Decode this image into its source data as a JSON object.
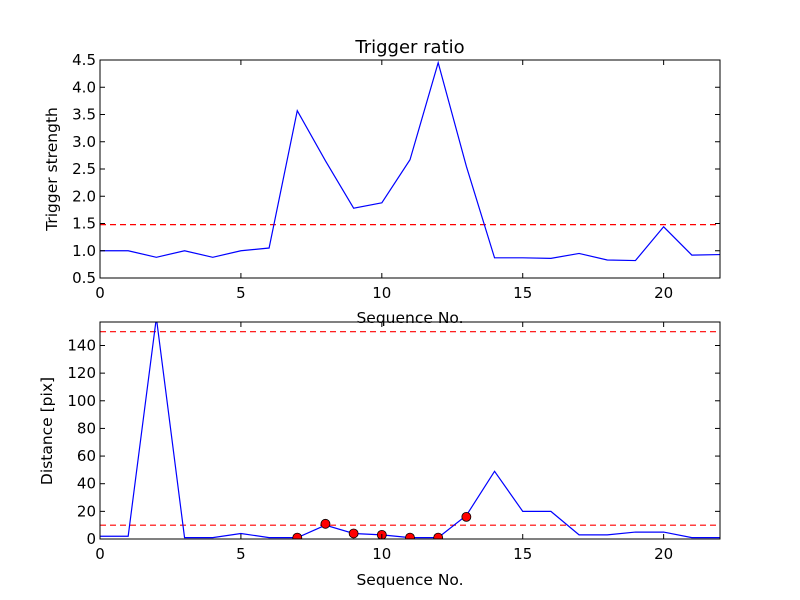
{
  "chart_data": [
    {
      "type": "line",
      "title": "Trigger ratio",
      "xlabel": "Sequence No.",
      "ylabel": "Trigger strength",
      "xlim": [
        0,
        22
      ],
      "ylim": [
        0.5,
        4.5
      ],
      "x_ticks": [
        0,
        5,
        10,
        15,
        20
      ],
      "x_tick_labels": [
        "0",
        "5",
        "10",
        "15",
        "20"
      ],
      "y_ticks": [
        0.5,
        1.0,
        1.5,
        2.0,
        2.5,
        3.0,
        3.5,
        4.0,
        4.5
      ],
      "y_tick_labels": [
        "0.5",
        "1.0",
        "1.5",
        "2.0",
        "2.5",
        "3.0",
        "3.5",
        "4.0",
        "4.5"
      ],
      "grid": false,
      "series": [
        {
          "color": "#0000ff",
          "x": [
            0,
            1,
            2,
            3,
            4,
            5,
            6,
            7,
            8,
            9,
            10,
            11,
            12,
            13,
            14,
            15,
            16,
            17,
            18,
            19,
            20,
            21,
            22
          ],
          "y": [
            1.0,
            1.0,
            0.88,
            1.0,
            0.88,
            1.0,
            1.05,
            3.57,
            2.65,
            1.78,
            1.88,
            2.67,
            4.45,
            2.55,
            0.87,
            0.87,
            0.86,
            0.95,
            0.83,
            0.82,
            1.44,
            0.92,
            0.93
          ]
        }
      ],
      "reference_lines": [
        {
          "y": 1.48,
          "color": "#ff0000",
          "style": "dashed"
        }
      ]
    },
    {
      "type": "line",
      "title": "",
      "xlabel": "Sequence No.",
      "ylabel": "Distance [pix]",
      "xlim": [
        0,
        22
      ],
      "ylim": [
        0,
        157
      ],
      "x_ticks": [
        0,
        5,
        10,
        15,
        20
      ],
      "x_tick_labels": [
        "0",
        "5",
        "10",
        "15",
        "20"
      ],
      "y_ticks": [
        0,
        20,
        40,
        60,
        80,
        100,
        120,
        140
      ],
      "y_tick_labels": [
        "0",
        "20",
        "40",
        "60",
        "80",
        "100",
        "120",
        "140"
      ],
      "grid": false,
      "series": [
        {
          "color": "#0000ff",
          "x": [
            0,
            1,
            2,
            3,
            4,
            5,
            6,
            7,
            8,
            9,
            10,
            11,
            12,
            13,
            14,
            15,
            16,
            17,
            18,
            19,
            20,
            21,
            22
          ],
          "y": [
            2,
            2,
            160,
            1,
            1,
            4,
            1,
            1,
            10,
            4,
            3,
            1,
            1,
            17,
            49,
            20,
            20,
            3,
            3,
            5,
            5,
            1,
            1
          ]
        },
        {
          "color": "#ff0000",
          "marker": "circle",
          "x": [
            7,
            8,
            9,
            10,
            11,
            12,
            13
          ],
          "y": [
            1,
            11,
            4,
            3,
            1,
            1,
            16
          ]
        }
      ],
      "reference_lines": [
        {
          "y": 150,
          "color": "#ff0000",
          "style": "dashed"
        },
        {
          "y": 10,
          "color": "#ff0000",
          "style": "dashed"
        }
      ]
    }
  ]
}
